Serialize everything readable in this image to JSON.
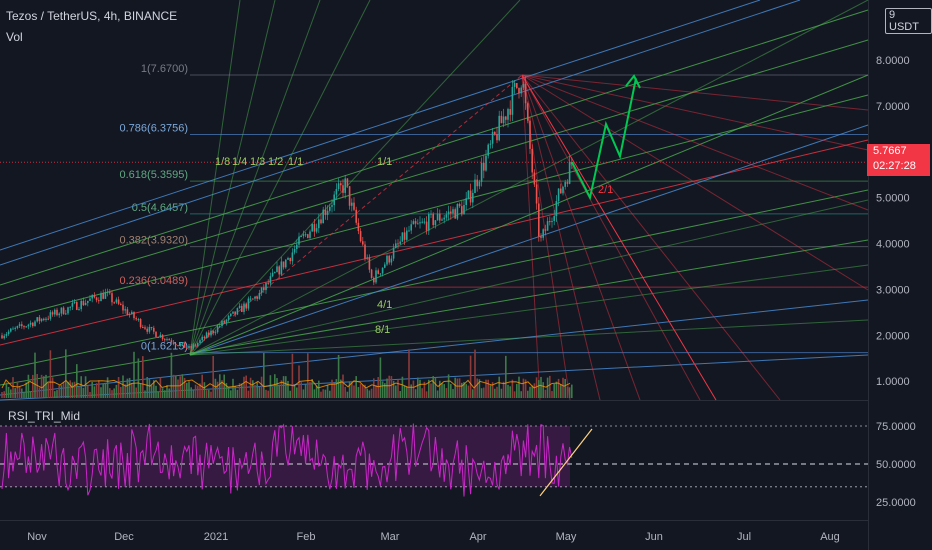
{
  "header": {
    "title": "Tezos / TetherUS, 4h, BINANCE",
    "volume_label": "Vol",
    "indicator_label": "RSI_TRI_Mid"
  },
  "price_axis": {
    "currency": "USDT",
    "ticks": [
      "9",
      "8.0000",
      "7.0000",
      "6.0000",
      "5.0000",
      "4.0000",
      "3.0000",
      "2.0000",
      "1.0000"
    ],
    "current_price": "5.7667",
    "countdown": "02:27:28"
  },
  "rsi_axis": {
    "ticks": [
      "75.0000",
      "50.0000",
      "25.0000"
    ]
  },
  "time_axis": {
    "labels": [
      "Nov",
      "Dec",
      "2021",
      "Feb",
      "Mar",
      "Apr",
      "May",
      "Jun",
      "Jul",
      "Aug"
    ]
  },
  "fib_levels": [
    "1(7.6700)",
    "0.786(6.3756)",
    "0.618(5.3595)",
    "0.5(4.6457)",
    "0.382(3.9320)",
    "0.236(3.0489)",
    "0(1.6215)"
  ],
  "gann_labels": [
    "1/8",
    "1/4",
    "1/3",
    "1/2",
    "1/1",
    "1/1",
    "2/1",
    "4/1",
    "8/1"
  ],
  "colors": {
    "background": "#131722",
    "up_candle": "#26a69a",
    "down_candle": "#ef5350",
    "fib_line": "#5b6b89",
    "rsi": "#c926c9",
    "price_tag": "#f23645",
    "forecast": "#00c853"
  },
  "chart_data": {
    "type": "candlestick",
    "series_values_approx": [
      {
        "date": "Nov",
        "price": 2.0
      },
      {
        "date": "late Nov",
        "price": 2.9
      },
      {
        "date": "Dec",
        "price": 2.1
      },
      {
        "date": "2021",
        "price": 1.7
      },
      {
        "date": "Feb",
        "price": 2.9
      },
      {
        "date": "mid Feb",
        "price": 5.3
      },
      {
        "date": "late Feb",
        "price": 3.2
      },
      {
        "date": "Mar",
        "price": 4.3
      },
      {
        "date": "Apr",
        "price": 4.8
      },
      {
        "date": "mid Apr",
        "price": 7.67
      },
      {
        "date": "late Apr",
        "price": 4.0
      },
      {
        "date": "May",
        "price": 5.77
      }
    ],
    "forecast_path": [
      5.77,
      5.0,
      6.6,
      5.9,
      7.6
    ],
    "rsi_levels": [
      75,
      50,
      35
    ],
    "ylim": [
      0.6,
      9.3
    ],
    "rsi_ylim": [
      20,
      82
    ]
  }
}
